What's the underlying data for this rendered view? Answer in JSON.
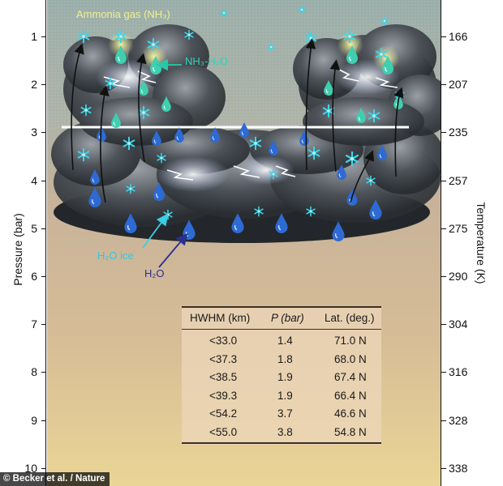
{
  "labels": {
    "ammonia": "Ammonia gas (NH₃)",
    "nh3_h2o": "NH₃-H₂O",
    "h2o_ice": "H₂O ice",
    "h2o": "H₂O"
  },
  "left_axis": {
    "label": "Pressure (bar)",
    "ticks": [
      "1",
      "2",
      "3",
      "4",
      "5",
      "6",
      "7",
      "8",
      "9",
      "10"
    ]
  },
  "right_axis": {
    "label": "Temperature (K)",
    "ticks": [
      "166",
      "207",
      "235",
      "257",
      "275",
      "290",
      "304",
      "316",
      "328",
      "338"
    ]
  },
  "table": {
    "headers": [
      "HWHM (km)",
      "P (bar)",
      "Lat. (deg.)"
    ],
    "rows": [
      [
        "<33.0",
        "1.4",
        "71.0 N"
      ],
      [
        "<37.3",
        "1.8",
        "68.0 N"
      ],
      [
        "<38.5",
        "1.9",
        "67.4 N"
      ],
      [
        "<39.3",
        "1.9",
        "66.4 N"
      ],
      [
        "<54.2",
        "3.7",
        "46.6 N"
      ],
      [
        "<55.0",
        "3.8",
        "54.8 N"
      ]
    ]
  },
  "credit": "© Becker et al. / Nature",
  "colors": {
    "sky_top": "#9fb3b0",
    "sky_bottom": "#b8bdb1",
    "cloud_dark": "#2e3338",
    "atmosphere_top": "#d8b894",
    "atmosphere_bottom": "#e8d29a",
    "ice_cyan": "#35d6e8",
    "water_blue": "#2f6fd6",
    "label_yellow": "#f3f29a"
  }
}
